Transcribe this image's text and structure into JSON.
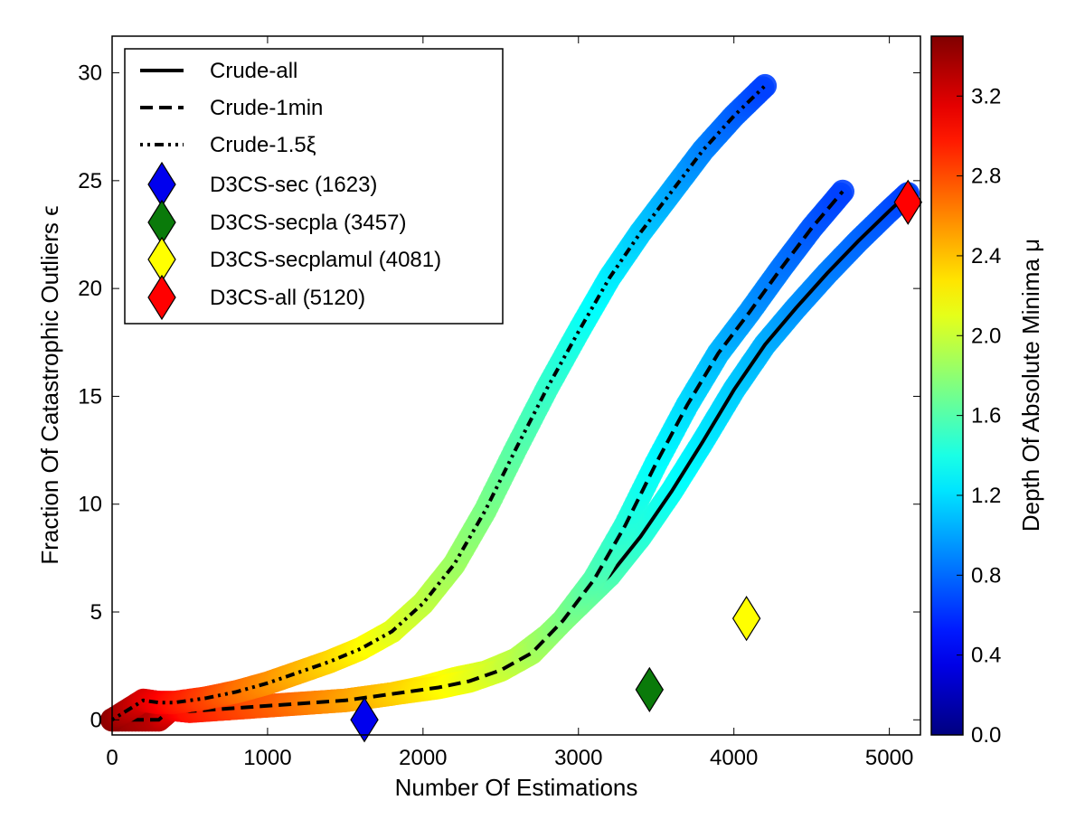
{
  "chart_data": {
    "type": "scatter",
    "title": "",
    "xlabel": "Number Of Estimations",
    "ylabel": "Fraction Of Catastrophic Outliers ϵ",
    "colorbar_label": "Depth Of Absolute Minima μ",
    "xlim": [
      0,
      5200
    ],
    "ylim": [
      -0.7,
      31.7
    ],
    "clim": [
      0.0,
      3.5
    ],
    "xticks": [
      0,
      1000,
      2000,
      3000,
      4000,
      5000
    ],
    "xtick_labels": [
      "0",
      "1000",
      "2000",
      "3000",
      "4000",
      "5000"
    ],
    "yticks": [
      0,
      5,
      10,
      15,
      20,
      25,
      30
    ],
    "ytick_labels": [
      "0",
      "5",
      "10",
      "15",
      "20",
      "25",
      "30"
    ],
    "cticks": [
      0.0,
      0.4,
      0.8,
      1.2,
      1.6,
      2.0,
      2.4,
      2.8,
      3.2
    ],
    "ctick_labels": [
      "0.0",
      "0.4",
      "0.8",
      "1.2",
      "1.6",
      "2.0",
      "2.4",
      "2.8",
      "3.2"
    ],
    "legend_position": "upper-left",
    "series": [
      {
        "name": "Crude-all",
        "style": "solid",
        "x": [
          0,
          300,
          380,
          500,
          700,
          900,
          1100,
          1300,
          1500,
          1600,
          1800,
          2000,
          2200,
          2400,
          2600,
          2800,
          3000,
          3200,
          3400,
          3600,
          3800,
          4000,
          4200,
          4400,
          4600,
          4800,
          5000,
          5120
        ],
        "y": [
          0,
          0,
          0.5,
          0.4,
          0.5,
          0.6,
          0.7,
          0.8,
          0.9,
          1.0,
          1.2,
          1.5,
          1.9,
          2.2,
          2.8,
          3.9,
          5.3,
          6.7,
          8.5,
          10.6,
          12.9,
          15.3,
          17.4,
          19.1,
          20.7,
          22.2,
          23.6,
          24.4
        ],
        "depth": [
          3.45,
          3.3,
          3.15,
          3.0,
          2.9,
          2.8,
          2.72,
          2.62,
          2.52,
          2.45,
          2.35,
          2.25,
          2.15,
          2.05,
          1.95,
          1.82,
          1.7,
          1.58,
          1.46,
          1.35,
          1.25,
          1.15,
          1.05,
          0.95,
          0.88,
          0.8,
          0.72,
          0.66
        ]
      },
      {
        "name": "Crude-1min",
        "style": "dashed",
        "x": [
          0,
          300,
          380,
          500,
          700,
          900,
          1100,
          1300,
          1500,
          1700,
          1900,
          2100,
          2300,
          2500,
          2700,
          2900,
          3100,
          3300,
          3500,
          3700,
          3900,
          4100,
          4300,
          4500,
          4700
        ],
        "y": [
          0,
          0,
          0.5,
          0.4,
          0.5,
          0.6,
          0.7,
          0.8,
          0.9,
          1.1,
          1.3,
          1.5,
          1.8,
          2.3,
          3.1,
          4.6,
          6.5,
          9.0,
          11.9,
          14.6,
          17.0,
          18.9,
          20.9,
          22.8,
          24.5
        ],
        "depth": [
          3.45,
          3.3,
          3.15,
          3.0,
          2.9,
          2.8,
          2.72,
          2.62,
          2.52,
          2.42,
          2.32,
          2.22,
          2.12,
          2.02,
          1.9,
          1.76,
          1.6,
          1.45,
          1.32,
          1.2,
          1.08,
          0.96,
          0.85,
          0.75,
          0.66
        ]
      },
      {
        "name": "Crude-1.5ξ",
        "style": "dashdot",
        "x": [
          0,
          200,
          300,
          400,
          600,
          800,
          1000,
          1200,
          1400,
          1600,
          1800,
          2000,
          2200,
          2400,
          2600,
          2800,
          3000,
          3200,
          3400,
          3600,
          3800,
          4000,
          4200
        ],
        "y": [
          0,
          0.9,
          0.8,
          0.8,
          1.0,
          1.3,
          1.7,
          2.2,
          2.7,
          3.3,
          4.1,
          5.4,
          7.2,
          9.7,
          12.6,
          15.4,
          18.0,
          20.5,
          22.6,
          24.5,
          26.4,
          28.0,
          29.4
        ],
        "depth": [
          3.45,
          3.2,
          3.1,
          3.0,
          2.85,
          2.7,
          2.58,
          2.46,
          2.34,
          2.22,
          2.1,
          1.98,
          1.86,
          1.74,
          1.62,
          1.5,
          1.38,
          1.26,
          1.14,
          1.02,
          0.9,
          0.78,
          0.66
        ]
      }
    ],
    "markers": [
      {
        "name": "D3CS-sec (1623)",
        "x": 1623,
        "y": 0.0,
        "color": "#0000ee"
      },
      {
        "name": "D3CS-secpla (3457)",
        "x": 3457,
        "y": 1.4,
        "color": "#0a7a0a"
      },
      {
        "name": "D3CS-secplamul (4081)",
        "x": 4081,
        "y": 4.7,
        "color": "#ffff00"
      },
      {
        "name": "D3CS-all (5120)",
        "x": 5120,
        "y": 24.0,
        "color": "#ff0000"
      }
    ]
  }
}
